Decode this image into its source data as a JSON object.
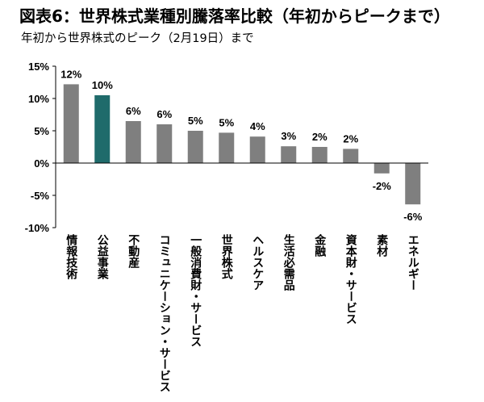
{
  "header": {
    "title": "図表6：世界株式業種別騰落率比較（年初からピークまで）",
    "subtitle": "年初から世界株式のピーク（2月19日）まで"
  },
  "chart_data": {
    "type": "bar",
    "title": "図表6：世界株式業種別騰落率比較（年初からピークまで）",
    "subtitle": "年初から世界株式のピーク（2月19日）まで",
    "categories": [
      "情報技術",
      "公益事業",
      "不動産",
      "コミュニケーション・サービス",
      "一般消費財・サービス",
      "世界株式",
      "ヘルスケア",
      "生活必需品",
      "金融",
      "資本財・サービス",
      "素材",
      "エネルギー"
    ],
    "values": [
      12.2,
      10.5,
      6.5,
      6.0,
      5.0,
      4.7,
      4.1,
      2.6,
      2.5,
      2.2,
      -1.6,
      -6.4
    ],
    "data_labels": [
      "12%",
      "10%",
      "6%",
      "6%",
      "5%",
      "5%",
      "4%",
      "3%",
      "2%",
      "2%",
      "-2%",
      "-6%"
    ],
    "highlight_index": 1,
    "ylim": [
      -10,
      15
    ],
    "yticks": [
      15,
      10,
      5,
      0,
      -5,
      -10
    ],
    "ytick_labels": [
      "15%",
      "10%",
      "5%",
      "0%",
      "-5%",
      "-10%"
    ],
    "xlabel": "",
    "ylabel": "",
    "grid": false,
    "colors": {
      "bar": "#7f7f7f",
      "highlight": "#1f6b6b",
      "axis": "#000000"
    }
  }
}
